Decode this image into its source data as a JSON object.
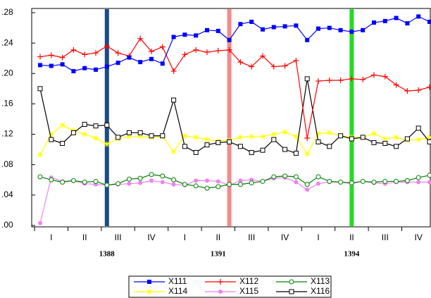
{
  "chart_data": {
    "type": "line",
    "categories": [
      null,
      "I",
      null,
      null,
      "II",
      null,
      null,
      "III",
      null,
      null,
      "IV",
      null,
      null,
      "I",
      null,
      null,
      "II",
      null,
      null,
      "III",
      null,
      null,
      "IV",
      null,
      null,
      "I",
      null,
      null,
      "II",
      null,
      null,
      "III",
      null,
      null,
      "IV",
      null
    ],
    "year_labels": [
      {
        "value": 6,
        "label": "1388"
      },
      {
        "value": 16,
        "label": "1391"
      },
      {
        "value": 28,
        "label": "1394"
      }
    ],
    "vlines": [
      {
        "x": 6,
        "color": "#1b4a86"
      },
      {
        "x": 17,
        "color": "#f48a8c"
      },
      {
        "x": 28,
        "color": "#22dd22"
      }
    ],
    "ylim": [
      0,
      0.28
    ],
    "yticks": [
      {
        "value": 0,
        "label": ".00"
      },
      {
        "value": 0.04,
        "label": ".04"
      },
      {
        "value": 0.08,
        "label": ".08"
      },
      {
        "value": 0.12,
        "label": ".12"
      },
      {
        "value": 0.16,
        "label": ".16"
      },
      {
        "value": 0.2,
        "label": ".20"
      },
      {
        "value": 0.24,
        "label": ".24"
      },
      {
        "value": 0.28,
        "label": ".28"
      }
    ],
    "series": [
      {
        "name": "X111",
        "color": "#0000ff",
        "marker": "square-filled",
        "values": [
          0.211,
          0.21,
          0.212,
          0.203,
          0.207,
          0.205,
          0.209,
          0.214,
          0.221,
          0.215,
          0.219,
          0.213,
          0.248,
          0.251,
          0.25,
          0.257,
          0.256,
          0.244,
          0.265,
          0.268,
          0.258,
          0.261,
          0.262,
          0.263,
          0.244,
          0.259,
          0.26,
          0.257,
          0.255,
          0.257,
          0.267,
          0.269,
          0.273,
          0.266,
          0.275,
          0.268
        ]
      },
      {
        "name": "X112",
        "color": "#ff0000",
        "marker": "plus",
        "values": [
          0.222,
          0.224,
          0.221,
          0.231,
          0.225,
          0.227,
          0.236,
          0.227,
          0.223,
          0.246,
          0.229,
          0.235,
          0.203,
          0.225,
          0.231,
          0.228,
          0.23,
          0.231,
          0.215,
          0.209,
          0.223,
          0.209,
          0.21,
          0.217,
          0.115,
          0.19,
          0.191,
          0.191,
          0.193,
          0.192,
          0.198,
          0.196,
          0.185,
          0.177,
          0.178,
          0.182
        ]
      },
      {
        "name": "X113",
        "color": "#008000",
        "marker": "circle-open",
        "values": [
          0.064,
          0.06,
          0.057,
          0.059,
          0.057,
          0.058,
          0.053,
          0.055,
          0.061,
          0.062,
          0.067,
          0.065,
          0.06,
          0.054,
          0.052,
          0.049,
          0.051,
          0.054,
          0.054,
          0.056,
          0.058,
          0.064,
          0.065,
          0.064,
          0.054,
          0.064,
          0.058,
          0.057,
          0.056,
          0.058,
          0.057,
          0.058,
          0.058,
          0.059,
          0.063,
          0.066
        ]
      },
      {
        "name": "X114",
        "color": "#ffff00",
        "marker": "star",
        "values": [
          0.093,
          0.12,
          0.132,
          0.125,
          0.12,
          0.115,
          0.107,
          0.114,
          0.117,
          0.117,
          0.116,
          0.117,
          0.097,
          0.118,
          0.116,
          0.113,
          0.111,
          0.112,
          0.116,
          0.117,
          0.117,
          0.12,
          0.123,
          0.117,
          0.094,
          0.121,
          0.122,
          0.118,
          0.116,
          0.116,
          0.121,
          0.114,
          0.116,
          0.112,
          0.113,
          0.116
        ]
      },
      {
        "name": "X115",
        "color": "#ee82ee",
        "marker": "circle-filled",
        "values": [
          0.003,
          0.063,
          0.058,
          0.059,
          0.055,
          0.054,
          0.053,
          0.054,
          0.055,
          0.056,
          0.059,
          0.057,
          0.054,
          0.053,
          0.059,
          0.059,
          0.058,
          0.053,
          0.059,
          0.06,
          0.058,
          0.062,
          0.063,
          0.057,
          0.047,
          0.055,
          0.057,
          0.057,
          0.055,
          0.058,
          0.056,
          0.055,
          0.057,
          0.057,
          0.057,
          0.057
        ]
      },
      {
        "name": "X116",
        "color": "#000000",
        "marker": "square-open",
        "values": [
          0.18,
          0.113,
          0.108,
          0.122,
          0.133,
          0.131,
          0.132,
          0.116,
          0.122,
          0.122,
          0.118,
          0.118,
          0.165,
          0.104,
          0.096,
          0.106,
          0.109,
          0.11,
          0.104,
          0.096,
          0.099,
          0.113,
          0.1,
          0.095,
          0.193,
          0.11,
          0.104,
          0.118,
          0.114,
          0.116,
          0.109,
          0.108,
          0.104,
          0.114,
          0.128,
          0.11
        ]
      }
    ],
    "legend": "bottom"
  }
}
